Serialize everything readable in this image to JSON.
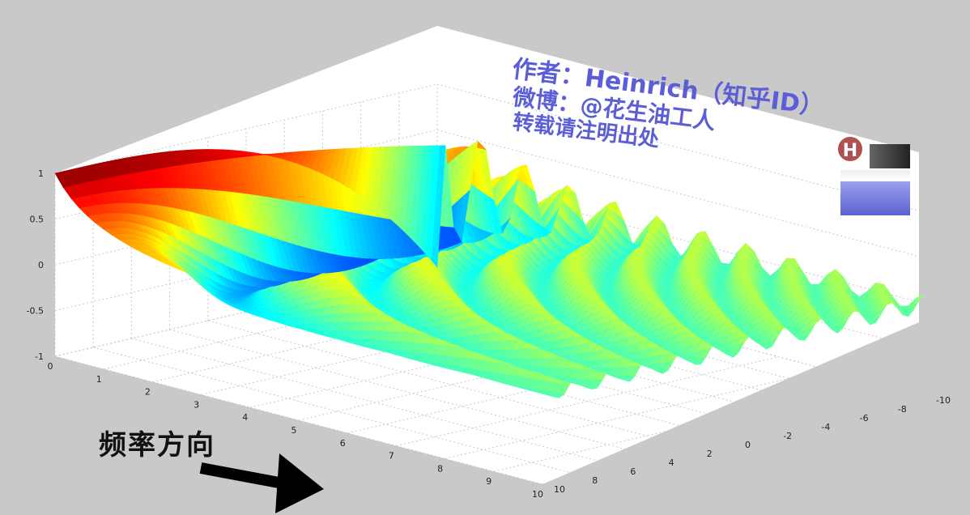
{
  "chart_data": {
    "type": "surface",
    "colormap": "jet",
    "title": "",
    "xlabel": "",
    "ylabel": "",
    "zlabel": "",
    "grid": true,
    "x_ticks": [
      "0",
      "1",
      "2",
      "3",
      "4",
      "5",
      "6",
      "7",
      "8",
      "9",
      "10"
    ],
    "y_ticks": [
      "10",
      "8",
      "6",
      "4",
      "2",
      "0",
      "-2",
      "-4",
      "-6",
      "-8",
      "-10"
    ],
    "z_ticks": [
      "1",
      "0.5",
      "0",
      "-0.5",
      "-1"
    ],
    "xlim": [
      0,
      10
    ],
    "ylim": [
      -10,
      10
    ],
    "zlim": [
      -1,
      1
    ],
    "surface_description_series": [
      {
        "name": "",
        "frequency_index": 0,
        "amplitude_along_y": "constant 1 at y=10 descending to -1 near y=-10"
      },
      {
        "name": "",
        "frequency_index": 1,
        "peak": 0.8,
        "trough": -0.8
      },
      {
        "name": "",
        "frequency_index": 2,
        "peak": 0.5,
        "trough": -0.5
      },
      {
        "name": "",
        "frequency_index": 5,
        "peak": 0.25,
        "trough": -0.25
      },
      {
        "name": "",
        "frequency_index": 10,
        "peak": 0.1,
        "trough": -0.1
      }
    ]
  },
  "annotations": {
    "watermark_line1": "作者：Heinrich（知乎ID）",
    "watermark_line2": "微博：@花生油工人",
    "watermark_line3": "转载请注明出处",
    "axis_label": "频率方向"
  },
  "logo": {
    "letter": "H"
  }
}
